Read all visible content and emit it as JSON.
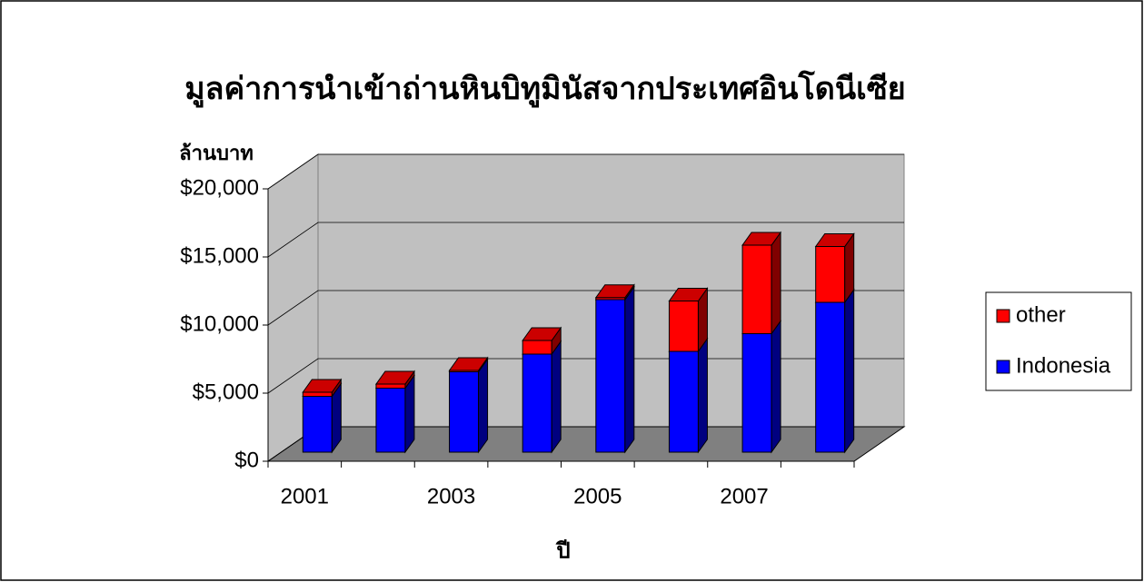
{
  "chart_data": {
    "type": "bar3d_stacked",
    "title": "มูลค่าการนำเข้าถ่านหินบิทูมินัสจากประเทศอินโดนีเซีย",
    "y_label": "ล้านบาท",
    "x_label": "ปี",
    "categories": [
      "2001",
      null,
      "2003",
      null,
      "2005",
      null,
      "2007",
      null
    ],
    "series": [
      {
        "name": "Indonesia",
        "color": "#0000ff",
        "values": [
          4100,
          4700,
          5900,
          7200,
          11200,
          7400,
          8700,
          11000
        ]
      },
      {
        "name": "other",
        "color": "#ff0000",
        "values": [
          300,
          300,
          100,
          1000,
          150,
          3700,
          6500,
          4100
        ]
      }
    ],
    "ylim": [
      0,
      20000
    ],
    "yticks": [
      {
        "value": 0,
        "label": "$0"
      },
      {
        "value": 5000,
        "label": "$5,000"
      },
      {
        "value": 10000,
        "label": "$10,000"
      },
      {
        "value": 15000,
        "label": "$15,000"
      },
      {
        "value": 20000,
        "label": "$20,000"
      }
    ],
    "grid": true,
    "legend": "right"
  }
}
